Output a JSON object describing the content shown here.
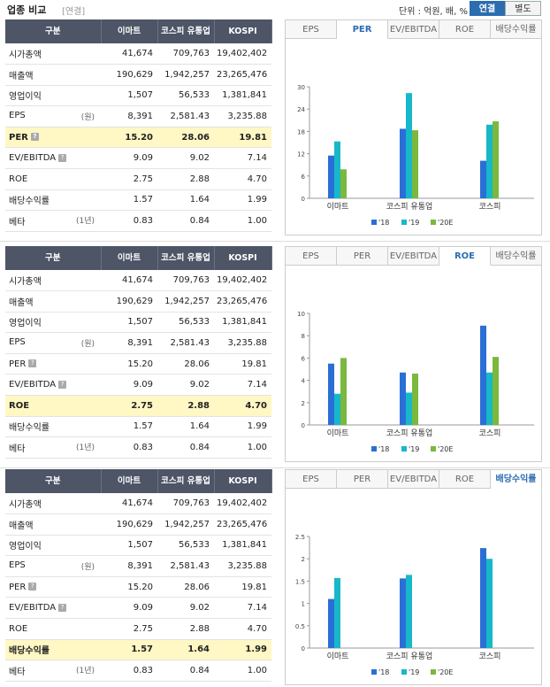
{
  "header": {
    "title": "업종 비교",
    "subtitle": "[연결]",
    "unit_text": "단위 : 억원, 배, %",
    "toggle_consolidated": "연결",
    "toggle_separate": "별도"
  },
  "table": {
    "headers": [
      "구분",
      "이마트",
      "코스피 유통업",
      "KOSPI"
    ],
    "rows": [
      {
        "label": "시가총액",
        "note": "",
        "q": false,
        "values": [
          "41,674",
          "709,763",
          "19,402,402"
        ]
      },
      {
        "label": "매출액",
        "note": "",
        "q": false,
        "values": [
          "190,629",
          "1,942,257",
          "23,265,476"
        ]
      },
      {
        "label": "영업이익",
        "note": "",
        "q": false,
        "values": [
          "1,507",
          "56,533",
          "1,381,841"
        ]
      },
      {
        "label": "EPS",
        "note": "(원)",
        "q": false,
        "values": [
          "8,391",
          "2,581.43",
          "3,235.88"
        ]
      },
      {
        "label": "PER",
        "note": "",
        "q": true,
        "values": [
          "15.20",
          "28.06",
          "19.81"
        ]
      },
      {
        "label": "EV/EBITDA",
        "note": "",
        "q": true,
        "values": [
          "9.09",
          "9.02",
          "7.14"
        ]
      },
      {
        "label": "ROE",
        "note": "",
        "q": false,
        "values": [
          "2.75",
          "2.88",
          "4.70"
        ]
      },
      {
        "label": "배당수익률",
        "note": "",
        "q": false,
        "values": [
          "1.57",
          "1.64",
          "1.99"
        ]
      },
      {
        "label": "베타",
        "note": "(1년)",
        "q": false,
        "values": [
          "0.83",
          "0.84",
          "1.00"
        ]
      }
    ]
  },
  "tabs": [
    "EPS",
    "PER",
    "EV/EBITDA",
    "ROE",
    "배당수익률"
  ],
  "colors": {
    "s18": "#2a6fd6",
    "s19": "#17b8c9",
    "s20": "#7ab83e"
  },
  "chart_data": [
    {
      "type": "bar",
      "active_tab": "PER",
      "highlight_row": 4,
      "categories": [
        "이마트",
        "코스피 유통업",
        "코스피"
      ],
      "series": [
        {
          "name": "'18",
          "values": [
            11.5,
            18.7,
            10.1
          ]
        },
        {
          "name": "'19",
          "values": [
            15.3,
            28.3,
            19.8
          ]
        },
        {
          "name": "'20E",
          "values": [
            7.8,
            18.3,
            20.7
          ]
        }
      ],
      "ylim": [
        0,
        30
      ],
      "yticks": [
        0,
        6,
        12,
        18,
        24,
        30
      ],
      "ytick_labels": [
        "0",
        "6",
        "12",
        "18",
        "24",
        "30"
      ],
      "legend": "bottom",
      "grid": false
    },
    {
      "type": "bar",
      "active_tab": "ROE",
      "highlight_row": 6,
      "categories": [
        "이마트",
        "코스피 유통업",
        "코스피"
      ],
      "series": [
        {
          "name": "'18",
          "values": [
            5.5,
            4.7,
            8.9
          ]
        },
        {
          "name": "'19",
          "values": [
            2.8,
            2.9,
            4.7
          ]
        },
        {
          "name": "'20E",
          "values": [
            6.0,
            4.6,
            6.1
          ]
        }
      ],
      "ylim": [
        0,
        10
      ],
      "yticks": [
        0,
        2,
        4,
        6,
        8,
        10
      ],
      "ytick_labels": [
        "0",
        "2",
        "4",
        "6",
        "8",
        "10"
      ],
      "legend": "bottom",
      "grid": false
    },
    {
      "type": "bar",
      "active_tab": "배당수익률",
      "highlight_row": 7,
      "categories": [
        "이마트",
        "코스피 유통업",
        "코스피"
      ],
      "series": [
        {
          "name": "'18",
          "values": [
            1.1,
            1.56,
            2.24
          ]
        },
        {
          "name": "'19",
          "values": [
            1.57,
            1.64,
            2.0
          ]
        },
        {
          "name": "'20E",
          "values": [
            null,
            null,
            null
          ]
        }
      ],
      "ylim": [
        0,
        2.5
      ],
      "yticks": [
        0,
        0.5,
        1,
        1.5,
        2,
        2.5
      ],
      "ytick_labels": [
        "0",
        "0.5",
        "1",
        "1.5",
        "2",
        "2.5"
      ],
      "legend": "bottom",
      "grid": false
    }
  ]
}
